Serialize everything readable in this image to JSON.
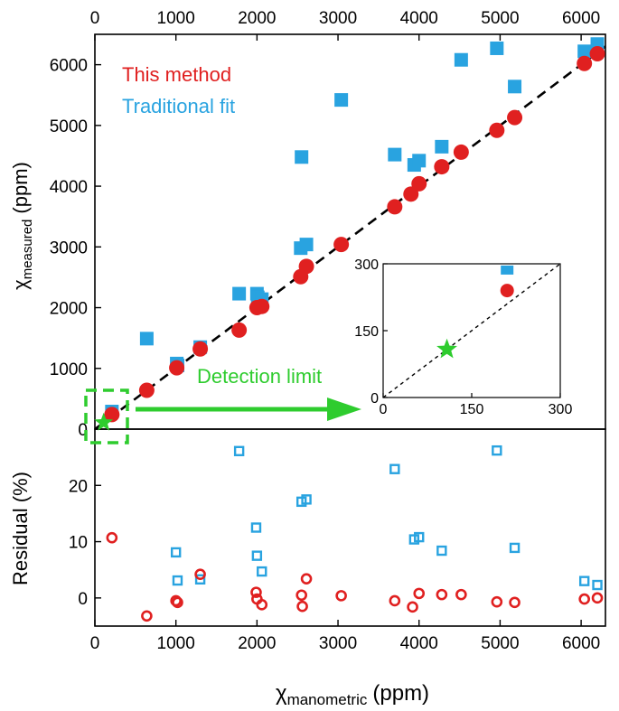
{
  "chart_data": [
    {
      "type": "scatter",
      "name": "main",
      "xlim": [
        0,
        6300
      ],
      "ylim": [
        0,
        6500
      ],
      "xticks": [
        0,
        1000,
        2000,
        3000,
        4000,
        5000,
        6000
      ],
      "yticks": [
        0,
        1000,
        2000,
        3000,
        4000,
        5000,
        6000
      ],
      "top_tick_labels": [
        "0",
        "1000",
        "2000",
        "3000",
        "4000",
        "5000",
        "6000"
      ],
      "ylabel_symbol": "χ",
      "ylabel_sub": "measured",
      "ylabel_unit": "(ppm)",
      "legend": [
        "This method",
        "Traditional fit"
      ],
      "colors": {
        "this_method": "#e02020",
        "traditional": "#29a3e0",
        "detection": "#2ecc2e",
        "line": "#000000"
      },
      "series": [
        {
          "name": "This method",
          "marker": "circle",
          "x": [
            210,
            640,
            1010,
            1300,
            1780,
            2000,
            2060,
            2540,
            2610,
            3040,
            3700,
            3900,
            4000,
            4280,
            4520,
            4960,
            5180,
            6040,
            6200
          ],
          "y": [
            240,
            640,
            1010,
            1320,
            1630,
            2000,
            2020,
            2510,
            2680,
            3040,
            3660,
            3870,
            4040,
            4320,
            4560,
            4920,
            5130,
            6020,
            6180
          ]
        },
        {
          "name": "Traditional fit",
          "marker": "square",
          "x": [
            210,
            640,
            1010,
            1020,
            1300,
            1780,
            2000,
            2010,
            2060,
            2540,
            2550,
            2610,
            3040,
            3700,
            3940,
            4000,
            4280,
            4520,
            4960,
            5180,
            6040,
            6200
          ],
          "y": [
            290,
            1490,
            1080,
            1050,
            1350,
            2230,
            2230,
            2170,
            2140,
            2980,
            4480,
            3040,
            5420,
            4520,
            4350,
            4420,
            4650,
            6080,
            6270,
            5640,
            6220,
            6340
          ]
        }
      ],
      "identity_line": [
        [
          0,
          0
        ],
        [
          6300,
          6300
        ]
      ],
      "annotation": "Detection limit"
    },
    {
      "type": "scatter",
      "name": "inset",
      "xlim": [
        0,
        300
      ],
      "ylim": [
        0,
        300
      ],
      "xticks": [
        0,
        150,
        300
      ],
      "yticks": [
        0,
        150,
        300
      ],
      "series": [
        {
          "name": "This method",
          "marker": "circle",
          "x": [
            210
          ],
          "y": [
            240
          ]
        },
        {
          "name": "Traditional fit",
          "marker": "square",
          "x": [
            210
          ],
          "y": [
            290
          ]
        },
        {
          "name": "Detection limit",
          "marker": "star",
          "x": [
            108
          ],
          "y": [
            108
          ]
        }
      ]
    },
    {
      "type": "scatter",
      "name": "residual",
      "xlim": [
        0,
        6300
      ],
      "ylim": [
        -5,
        30
      ],
      "xticks": [
        0,
        1000,
        2000,
        3000,
        4000,
        5000,
        6000
      ],
      "yticks": [
        0,
        10,
        20
      ],
      "ylabel": "Residual (%)",
      "xlabel_symbol": "χ",
      "xlabel_sub": "manometric",
      "xlabel_unit": "(ppm)",
      "series": [
        {
          "name": "This method",
          "marker": "open-circle",
          "x": [
            210,
            640,
            1000,
            1020,
            1300,
            1990,
            2000,
            2060,
            2550,
            2560,
            2610,
            3040,
            3700,
            3920,
            4000,
            4280,
            4520,
            4960,
            5180,
            6040,
            6200
          ],
          "y": [
            10.7,
            -3.2,
            -0.5,
            -0.8,
            4.2,
            1.0,
            -0.2,
            -1.2,
            0.5,
            -1.5,
            3.4,
            0.4,
            -0.5,
            -1.6,
            0.8,
            0.6,
            0.6,
            -0.7,
            -0.8,
            -0.2,
            0.0
          ]
        },
        {
          "name": "Traditional fit",
          "marker": "open-square",
          "x": [
            1000,
            1020,
            1300,
            1780,
            1990,
            2000,
            2060,
            2550,
            2610,
            3700,
            3940,
            4000,
            4280,
            4960,
            5180,
            6040,
            6200
          ],
          "y": [
            8.1,
            3.1,
            3.3,
            26.1,
            12.5,
            7.5,
            4.7,
            17.1,
            17.5,
            22.9,
            10.4,
            10.8,
            8.4,
            26.2,
            8.9,
            3.0,
            2.3
          ]
        }
      ]
    }
  ]
}
